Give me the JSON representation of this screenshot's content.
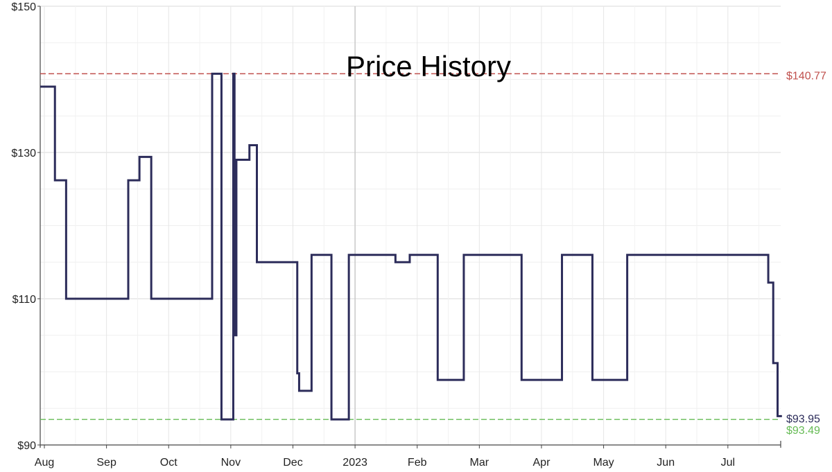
{
  "chart_data": {
    "type": "line",
    "step": true,
    "title": "Price History",
    "xlabel": "",
    "ylabel": "",
    "xlim": [
      0,
      12
    ],
    "ylim": [
      90,
      150
    ],
    "y_ticks": [
      {
        "value": 90,
        "label": "$90"
      },
      {
        "value": 110,
        "label": "$110"
      },
      {
        "value": 130,
        "label": "$130"
      },
      {
        "value": 150,
        "label": "$150"
      }
    ],
    "x_ticks": [
      {
        "value": 0,
        "label": "Aug"
      },
      {
        "value": 1,
        "label": "Sep"
      },
      {
        "value": 2,
        "label": "Oct"
      },
      {
        "value": 3,
        "label": "Nov"
      },
      {
        "value": 4,
        "label": "Dec"
      },
      {
        "value": 5,
        "label": "2023"
      },
      {
        "value": 6,
        "label": "Feb"
      },
      {
        "value": 7,
        "label": "Mar"
      },
      {
        "value": 8,
        "label": "Apr"
      },
      {
        "value": 9,
        "label": "May"
      },
      {
        "value": 10,
        "label": "Jun"
      },
      {
        "value": 11,
        "label": "Jul"
      }
    ],
    "series": [
      {
        "name": "Price",
        "color": "#2c2c5a",
        "x": [
          -0.07,
          0.17,
          0.35,
          1.35,
          1.53,
          1.72,
          2.7,
          2.85,
          3.02,
          3.04,
          3.06,
          3.09,
          3.3,
          3.42,
          4.07,
          4.1,
          4.3,
          4.62,
          4.9,
          5.65,
          5.68,
          5.88,
          6.33,
          6.75,
          7.68,
          8.33,
          8.82,
          9.38,
          11.65,
          11.73,
          11.8,
          11.87
        ],
        "values": [
          139,
          126.2,
          110,
          126.2,
          129.4,
          110,
          140.77,
          93.49,
          93.49,
          140.77,
          105,
          129,
          131,
          115,
          99.8,
          97.4,
          116,
          93.49,
          116,
          115,
          115,
          116,
          98.9,
          116,
          98.9,
          116,
          98.9,
          116,
          112.2,
          101.2,
          93.95,
          93.95
        ]
      }
    ],
    "reference_lines": [
      {
        "value": 140.77,
        "label": "$140.77",
        "color": "#c0504d"
      },
      {
        "value": 93.49,
        "label": "$93.49",
        "color": "#66bb55"
      }
    ],
    "current_price": {
      "value": 93.95,
      "label": "$93.95",
      "color": "#2c2c5a"
    },
    "grid": true
  }
}
